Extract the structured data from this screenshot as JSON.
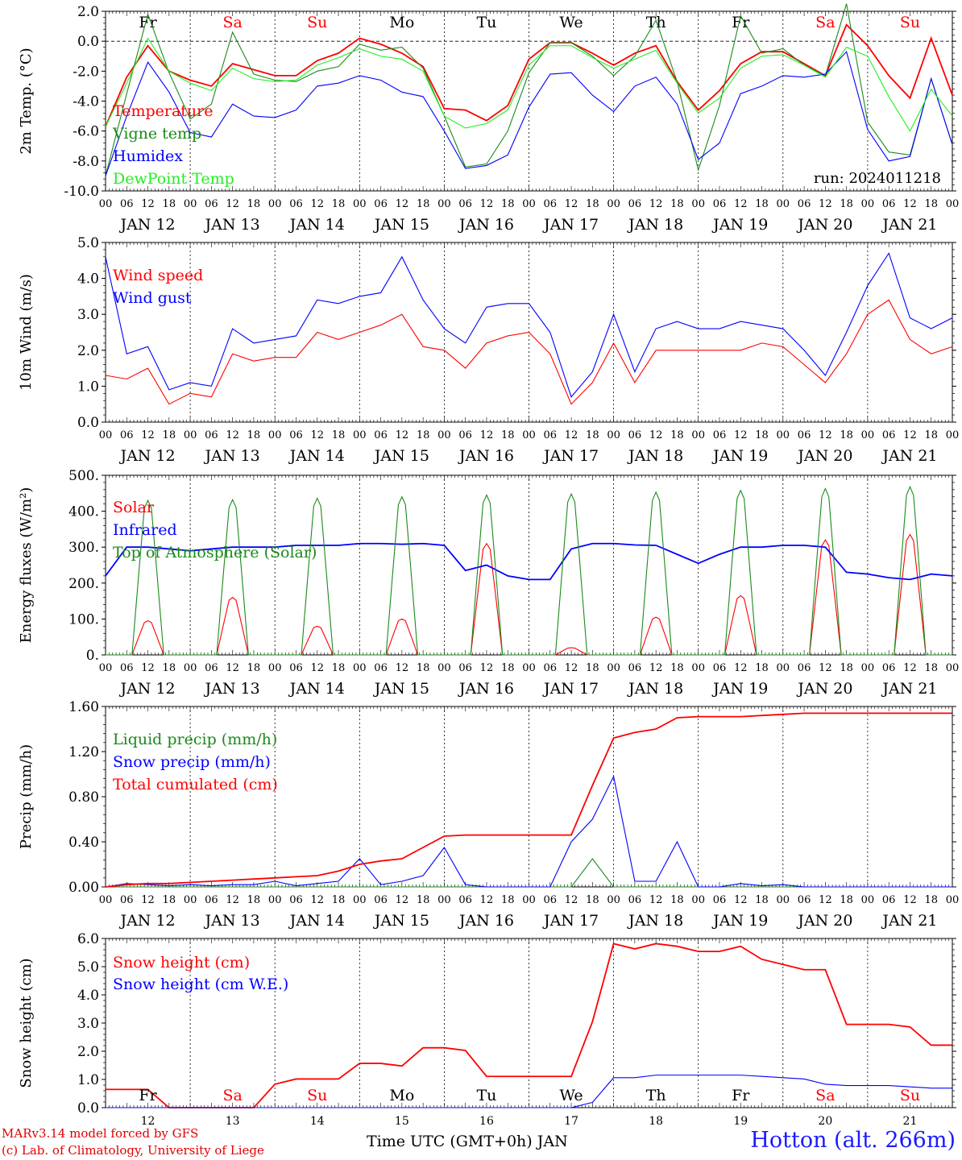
{
  "footer": {
    "credit_line1": "MARv3.14 model forced by GFS",
    "credit_line2": "(c) Lab. of Climatology, University of Liege",
    "xaxis_title": "Time UTC (GMT+0h) JAN",
    "station": "Hotton (alt. 266m)"
  },
  "colors": {
    "red": "#ff0000",
    "darkgreen": "#1a8a1a",
    "blue": "#0000ff",
    "lightgreen": "#22ee22",
    "black": "#000000"
  },
  "chart_data": [
    {
      "type": "line",
      "ylabel": "2m Temp. (°C)",
      "ylim": [
        -10,
        2
      ],
      "yticks": [
        "-10.0",
        "-8.0",
        "-6.0",
        "-4.0",
        "-2.0",
        "0.0",
        "2.0"
      ],
      "time_hours_from_jan12_00": [
        0,
        6,
        12,
        18,
        24,
        30,
        36,
        42,
        48,
        54,
        60,
        66,
        72,
        78,
        84,
        90,
        96,
        102,
        108,
        114,
        120,
        126,
        132,
        138,
        144,
        150,
        156,
        162,
        168,
        174,
        180,
        186,
        192,
        198,
        204,
        210,
        216,
        222,
        228,
        234,
        240
      ],
      "annotation": "run: 2024011218",
      "day_names": [
        "Fr",
        "Sa",
        "Su",
        "Mo",
        "Tu",
        "We",
        "Th",
        "Fr",
        "Sa",
        "Su"
      ],
      "weekend_days": [
        "Sa",
        "Su"
      ],
      "series": [
        {
          "name": "Temperature",
          "color": "red",
          "values": [
            -5.7,
            -2.4,
            -0.3,
            -2.0,
            -2.6,
            -3.0,
            -1.5,
            -1.9,
            -2.3,
            -2.3,
            -1.3,
            -0.8,
            0.2,
            -0.2,
            -0.8,
            -1.7,
            -4.5,
            -4.6,
            -5.3,
            -4.3,
            -1.2,
            -0.1,
            -0.1,
            -0.8,
            -1.6,
            -0.8,
            -0.3,
            -2.7,
            -4.6,
            -3.3,
            -1.5,
            -0.7,
            -0.7,
            -1.5,
            -2.3,
            1.1,
            -0.3,
            -2.3,
            -3.8,
            0.2,
            -3.6
          ]
        },
        {
          "name": "Vigne temp",
          "color": "darkgreen",
          "values": [
            -9.0,
            -3.5,
            1.8,
            -2.1,
            -5.2,
            -4.2,
            0.6,
            -2.2,
            -2.6,
            -2.7,
            -2.0,
            -1.7,
            -0.2,
            -0.6,
            -0.4,
            -1.8,
            -5.0,
            -8.4,
            -8.2,
            -6.0,
            -2.1,
            -0.1,
            -0.1,
            -1.0,
            -2.3,
            -1.0,
            1.4,
            -2.7,
            -8.6,
            -4.3,
            1.7,
            -0.8,
            -0.5,
            -1.6,
            -2.3,
            2.5,
            -5.4,
            -7.4,
            -7.6,
            -2.5,
            -6.9
          ]
        },
        {
          "name": "Humidex",
          "color": "blue",
          "values": [
            -9.0,
            -5.0,
            -1.4,
            -3.4,
            -6.1,
            -6.4,
            -4.2,
            -5.0,
            -5.1,
            -4.6,
            -3.0,
            -2.8,
            -2.3,
            -2.6,
            -3.4,
            -3.7,
            -6.0,
            -8.5,
            -8.3,
            -7.6,
            -4.4,
            -2.2,
            -2.1,
            -3.6,
            -4.7,
            -3.0,
            -2.4,
            -4.2,
            -7.9,
            -6.8,
            -3.5,
            -3.0,
            -2.3,
            -2.4,
            -2.2,
            -0.7,
            -5.9,
            -8.0,
            -7.7,
            -2.5,
            -6.9
          ]
        },
        {
          "name": "DewPoint Temp",
          "color": "lightgreen",
          "values": [
            -5.7,
            -2.8,
            0.2,
            -2.0,
            -2.8,
            -3.3,
            -1.8,
            -2.5,
            -2.7,
            -2.6,
            -1.6,
            -1.1,
            -0.5,
            -1.0,
            -1.2,
            -2.0,
            -5.0,
            -5.8,
            -5.5,
            -4.6,
            -1.6,
            -0.3,
            -0.3,
            -1.1,
            -1.8,
            -1.2,
            -0.6,
            -2.8,
            -4.8,
            -3.8,
            -1.8,
            -1.0,
            -0.9,
            -1.6,
            -2.4,
            -0.4,
            -1.0,
            -3.7,
            -6.0,
            -3.2,
            -5.0
          ]
        }
      ]
    },
    {
      "type": "line",
      "ylabel": "10m Wind (m/s)",
      "ylim": [
        0,
        5
      ],
      "yticks": [
        "0.0",
        "1.0",
        "2.0",
        "3.0",
        "4.0",
        "5.0"
      ],
      "time_hours_from_jan12_00": [
        0,
        6,
        12,
        18,
        24,
        30,
        36,
        42,
        48,
        54,
        60,
        66,
        72,
        78,
        84,
        90,
        96,
        102,
        108,
        114,
        120,
        126,
        132,
        138,
        144,
        150,
        156,
        162,
        168,
        174,
        180,
        186,
        192,
        198,
        204,
        210,
        216,
        222,
        228,
        234,
        240
      ],
      "series": [
        {
          "name": "Wind speed",
          "color": "red",
          "values": [
            1.3,
            1.2,
            1.5,
            0.5,
            0.8,
            0.7,
            1.9,
            1.7,
            1.8,
            1.8,
            2.5,
            2.3,
            2.5,
            2.7,
            3.0,
            2.1,
            2.0,
            1.5,
            2.2,
            2.4,
            2.5,
            1.9,
            0.5,
            1.1,
            2.2,
            1.1,
            2.0,
            2.0,
            2.0,
            2.0,
            2.0,
            2.2,
            2.1,
            1.6,
            1.1,
            1.9,
            3.0,
            3.4,
            2.3,
            1.9,
            2.1
          ]
        },
        {
          "name": "Wind gust",
          "color": "blue",
          "values": [
            4.6,
            1.9,
            2.1,
            0.9,
            1.1,
            1.0,
            2.6,
            2.2,
            2.3,
            2.4,
            3.4,
            3.3,
            3.5,
            3.6,
            4.6,
            3.4,
            2.6,
            2.2,
            3.2,
            3.3,
            3.3,
            2.5,
            0.7,
            1.4,
            3.0,
            1.4,
            2.6,
            2.8,
            2.6,
            2.6,
            2.8,
            2.7,
            2.6,
            2.0,
            1.3,
            2.5,
            3.8,
            4.7,
            2.9,
            2.6,
            2.9
          ]
        }
      ]
    },
    {
      "type": "line",
      "ylabel": "Energy fluxes (W/m²)",
      "ylim": [
        0,
        500
      ],
      "yticks": [
        "0.",
        "100.",
        "200.",
        "300.",
        "400.",
        "500."
      ],
      "noon_hours_from_jan12_00": [
        12,
        36,
        60,
        84,
        108,
        132,
        156,
        180,
        204,
        228
      ],
      "series": [
        {
          "name": "Solar",
          "color": "red",
          "daily_peak": [
            95,
            160,
            80,
            100,
            310,
            20,
            105,
            165,
            320,
            335
          ]
        },
        {
          "name": "Infrared",
          "color": "blue",
          "time_hours_from_jan12_00": [
            0,
            6,
            12,
            18,
            24,
            30,
            36,
            42,
            48,
            54,
            60,
            66,
            72,
            78,
            84,
            90,
            96,
            102,
            108,
            114,
            120,
            126,
            132,
            138,
            144,
            150,
            156,
            162,
            168,
            174,
            180,
            186,
            192,
            198,
            204,
            210,
            216,
            222,
            228,
            234,
            240
          ],
          "values": [
            220,
            300,
            300,
            295,
            290,
            295,
            300,
            300,
            300,
            305,
            305,
            305,
            310,
            310,
            308,
            310,
            305,
            235,
            250,
            220,
            210,
            210,
            295,
            310,
            310,
            306,
            305,
            280,
            255,
            280,
            300,
            300,
            305,
            305,
            300,
            230,
            225,
            215,
            210,
            225,
            220
          ]
        },
        {
          "name": "Top of Atmosphere (Solar)",
          "color": "darkgreen",
          "daily_peak": [
            430,
            432,
            436,
            440,
            445,
            448,
            453,
            458,
            463,
            468
          ]
        }
      ]
    },
    {
      "type": "line",
      "ylabel": "Precip (mm/h)",
      "ylim": [
        0,
        1.6
      ],
      "yticks": [
        "0.00",
        "0.40",
        "0.80",
        "1.20",
        "1.60"
      ],
      "time_hours_from_jan12_00": [
        0,
        6,
        12,
        18,
        24,
        30,
        36,
        42,
        48,
        54,
        60,
        66,
        72,
        78,
        84,
        90,
        96,
        102,
        108,
        114,
        120,
        126,
        132,
        138,
        144,
        150,
        156,
        162,
        168,
        174,
        180,
        186,
        192,
        198,
        204,
        210,
        216,
        222,
        228,
        234,
        240
      ],
      "series": [
        {
          "name": "Liquid precip (mm/h)",
          "color": "darkgreen",
          "values": [
            0,
            0,
            0,
            0,
            0,
            0,
            0,
            0,
            0,
            0,
            0,
            0,
            0,
            0,
            0,
            0,
            0,
            0,
            0,
            0,
            0,
            0,
            0,
            0.25,
            0,
            0,
            0,
            0,
            0,
            0,
            0,
            0,
            0,
            0,
            0,
            0,
            0,
            0,
            0,
            0,
            0
          ]
        },
        {
          "name": "Snow precip (mm/h)",
          "color": "blue",
          "values": [
            0,
            0.03,
            0.02,
            0.01,
            0.02,
            0.01,
            0.02,
            0.02,
            0.05,
            0.01,
            0.03,
            0.05,
            0.25,
            0.02,
            0.05,
            0.1,
            0.35,
            0.02,
            0,
            0,
            0,
            0,
            0.4,
            0.6,
            0.98,
            0.05,
            0.05,
            0.4,
            0,
            0,
            0.03,
            0.01,
            0.02,
            0,
            0,
            0,
            0,
            0,
            0,
            0,
            0
          ]
        },
        {
          "name": "Total cumulated (cm)",
          "color": "red",
          "values": [
            0,
            0.02,
            0.03,
            0.03,
            0.04,
            0.05,
            0.06,
            0.07,
            0.08,
            0.09,
            0.1,
            0.14,
            0.2,
            0.23,
            0.25,
            0.35,
            0.45,
            0.46,
            0.46,
            0.46,
            0.46,
            0.46,
            0.46,
            0.9,
            1.32,
            1.37,
            1.4,
            1.5,
            1.51,
            1.51,
            1.51,
            1.52,
            1.53,
            1.54,
            1.54,
            1.54,
            1.54,
            1.54,
            1.54,
            1.54,
            1.54
          ]
        }
      ]
    },
    {
      "type": "line",
      "ylabel": "Snow height (cm)",
      "ylim": [
        0,
        6.5
      ],
      "yticks": [
        "0.0",
        "1.0",
        "2.0",
        "3.0",
        "4.0",
        "5.0",
        "6.0"
      ],
      "time_hours_from_jan12_00": [
        0,
        6,
        12,
        18,
        24,
        30,
        36,
        42,
        48,
        54,
        60,
        66,
        72,
        78,
        84,
        90,
        96,
        102,
        108,
        114,
        120,
        126,
        132,
        138,
        144,
        150,
        156,
        162,
        168,
        174,
        180,
        186,
        192,
        198,
        204,
        210,
        216,
        222,
        228,
        234,
        240
      ],
      "day_names": [
        "Fr",
        "Sa",
        "Su",
        "Mo",
        "Tu",
        "We",
        "Th",
        "Fr",
        "Sa",
        "Su"
      ],
      "day_numbers": [
        "12",
        "13",
        "14",
        "15",
        "16",
        "17",
        "18",
        "19",
        "20",
        "21"
      ],
      "series": [
        {
          "name": "Snow height (cm)",
          "color": "red",
          "values": [
            0.7,
            0.7,
            0.7,
            0,
            0,
            0,
            0,
            0,
            0.9,
            1.1,
            1.1,
            1.1,
            1.7,
            1.7,
            1.6,
            2.3,
            2.3,
            2.2,
            1.2,
            1.2,
            1.2,
            1.2,
            1.2,
            3.3,
            6.3,
            6.1,
            6.3,
            6.2,
            6.0,
            6.0,
            6.2,
            5.7,
            5.5,
            5.3,
            5.3,
            3.2,
            3.2,
            3.2,
            3.1,
            2.4,
            2.4
          ]
        },
        {
          "name": "Snow height (cm W.E.)",
          "color": "blue",
          "values": [
            0,
            0,
            0,
            0,
            0,
            0,
            0,
            0,
            0,
            0,
            0,
            0,
            0,
            0,
            0,
            0,
            0,
            0,
            0,
            0,
            0,
            0,
            0,
            0.2,
            1.15,
            1.15,
            1.25,
            1.25,
            1.25,
            1.25,
            1.25,
            1.2,
            1.15,
            1.1,
            0.9,
            0.85,
            0.85,
            0.85,
            0.8,
            0.75,
            0.75
          ]
        }
      ]
    }
  ],
  "date_labels": [
    "JAN 12",
    "JAN 13",
    "JAN 14",
    "JAN 15",
    "JAN 16",
    "JAN 17",
    "JAN 18",
    "JAN 19",
    "JAN 20",
    "JAN 21"
  ],
  "hour_labels": [
    "00",
    "06",
    "12",
    "18"
  ]
}
